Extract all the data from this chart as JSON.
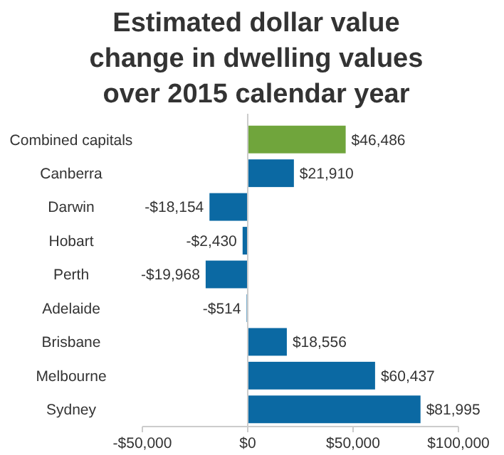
{
  "chart_data": {
    "type": "bar",
    "orientation": "horizontal",
    "title": "Estimated dollar value change in dwelling values over 2015 calendar year",
    "categories": [
      "Combined capitals",
      "Canberra",
      "Darwin",
      "Hobart",
      "Perth",
      "Adelaide",
      "Brisbane",
      "Melbourne",
      "Sydney"
    ],
    "values": [
      46486,
      21910,
      -18154,
      -2430,
      -19968,
      -514,
      18556,
      60437,
      81995
    ],
    "value_labels": [
      "$46,486",
      "$21,910",
      "-$18,154",
      "-$2,430",
      "-$19,968",
      "-$514",
      "$18,556",
      "$60,437",
      "$81,995"
    ],
    "colors": [
      "#70a53c",
      "#0b69a3",
      "#0b69a3",
      "#0b69a3",
      "#0b69a3",
      "#0b69a3",
      "#0b69a3",
      "#0b69a3",
      "#0b69a3"
    ],
    "xlim": [
      -50000,
      100000
    ],
    "xticks": [
      {
        "value": -50000,
        "label": "-$50,000"
      },
      {
        "value": 0,
        "label": "$0"
      },
      {
        "value": 50000,
        "label": "$50,000"
      },
      {
        "value": 100000,
        "label": "$100,000"
      }
    ]
  }
}
